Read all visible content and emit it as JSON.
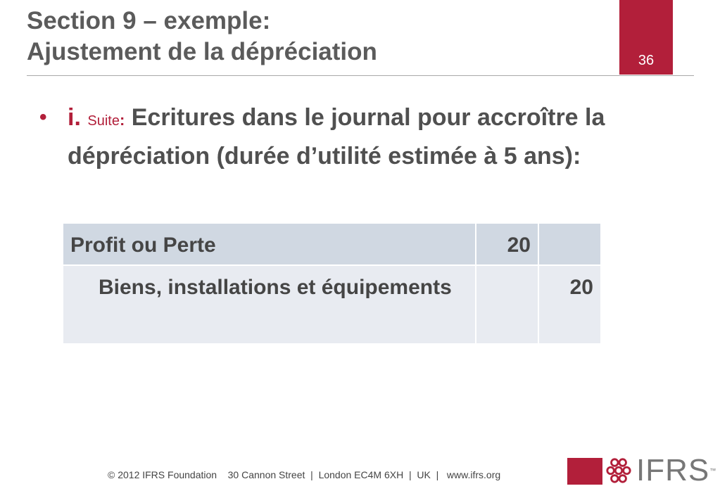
{
  "header": {
    "title_line1": "Section 9 – exemple:",
    "title_line2": "Ajustement de la dépréciation",
    "page_number": "36",
    "accent_color": "#b21f3a"
  },
  "bullet": {
    "label": "i.",
    "suite": "Suite",
    "colon": ":",
    "text": "Ecritures dans le journal pour accroître la dépréciation (durée d’utilité estimée à 5 ans):"
  },
  "journal": {
    "rows": [
      {
        "account": "Profit ou Perte",
        "debit": "20",
        "credit": ""
      },
      {
        "account": "Biens, installations et équipements",
        "debit": "",
        "credit": "20"
      }
    ]
  },
  "footer": {
    "text": "© 2012 IFRS Foundation    30 Cannon Street  |  London EC4M 6XH  |  UK  |   www.ifrs.org",
    "logo_text": "IFRS",
    "logo_tm": "™"
  }
}
